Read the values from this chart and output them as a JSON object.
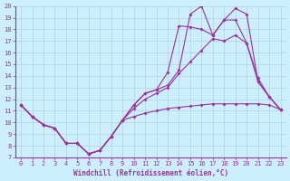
{
  "xlabel": "Windchill (Refroidissement éolien,°C)",
  "line_color": "#993399",
  "bg_color": "#cceeff",
  "grid_color": "#aacccc",
  "xlim": [
    -0.5,
    23.5
  ],
  "ylim": [
    7,
    20
  ],
  "yticks": [
    7,
    8,
    9,
    10,
    11,
    12,
    13,
    14,
    15,
    16,
    17,
    18,
    19,
    20
  ],
  "xticks": [
    0,
    1,
    2,
    3,
    4,
    5,
    6,
    7,
    8,
    9,
    10,
    11,
    12,
    13,
    14,
    15,
    16,
    17,
    18,
    19,
    20,
    21,
    22,
    23
  ],
  "line1_x": [
    0,
    1,
    2,
    3,
    4,
    5,
    6,
    7,
    8,
    9,
    10,
    11,
    12,
    13,
    14,
    15,
    16,
    17,
    18,
    19,
    20,
    21,
    22,
    23
  ],
  "line1_y": [
    11.5,
    10.5,
    9.8,
    9.5,
    8.2,
    8.2,
    7.3,
    7.6,
    8.8,
    10.2,
    10.5,
    10.8,
    11.0,
    11.2,
    11.3,
    11.4,
    11.5,
    11.6,
    11.6,
    11.6,
    11.6,
    11.6,
    11.5,
    11.1
  ],
  "line2_x": [
    0,
    1,
    2,
    3,
    4,
    5,
    6,
    7,
    8,
    9,
    10,
    11,
    12,
    13,
    14,
    15,
    16,
    17,
    18,
    19,
    20,
    21,
    22,
    23
  ],
  "line2_y": [
    11.5,
    10.5,
    9.8,
    9.5,
    8.2,
    8.2,
    7.3,
    7.6,
    8.8,
    10.2,
    11.2,
    12.0,
    12.5,
    13.0,
    14.2,
    15.2,
    16.2,
    17.2,
    17.0,
    17.5,
    16.8,
    13.8,
    12.2,
    11.1
  ],
  "line3_x": [
    0,
    1,
    2,
    3,
    4,
    5,
    6,
    7,
    8,
    9,
    10,
    11,
    12,
    13,
    14,
    15,
    16,
    17,
    18,
    19,
    20,
    21,
    22,
    23
  ],
  "line3_y": [
    11.5,
    10.5,
    9.8,
    9.5,
    8.2,
    8.2,
    7.3,
    7.6,
    8.8,
    10.2,
    11.5,
    12.5,
    12.8,
    14.3,
    18.3,
    18.2,
    18.0,
    17.5,
    18.8,
    19.8,
    19.3,
    13.5,
    12.2,
    11.1
  ],
  "line4_x": [
    0,
    1,
    2,
    3,
    4,
    5,
    6,
    7,
    8,
    9,
    10,
    11,
    12,
    13,
    14,
    15,
    16,
    17,
    18,
    19,
    20,
    21,
    22,
    23
  ],
  "line4_y": [
    11.5,
    10.5,
    9.8,
    9.5,
    8.2,
    8.2,
    7.3,
    7.6,
    8.8,
    10.2,
    11.5,
    12.5,
    12.8,
    13.2,
    14.5,
    19.3,
    20.0,
    17.5,
    18.8,
    18.8,
    16.8,
    13.5,
    12.2,
    11.1
  ]
}
